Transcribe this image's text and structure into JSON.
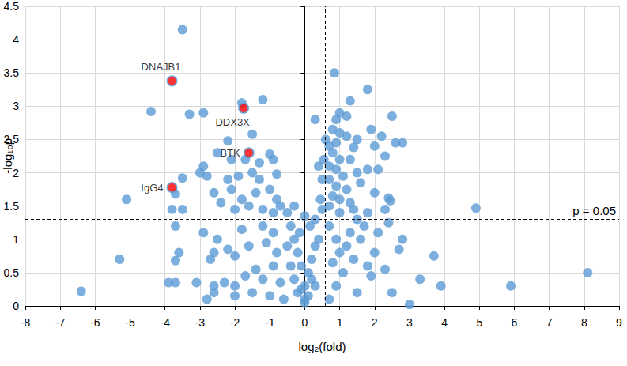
{
  "chart_data": {
    "type": "scatter",
    "x_label": "log₂(fold)",
    "y_label": "-log₁₀p",
    "xlim": [
      -8,
      9
    ],
    "xticks": [
      -8,
      -7,
      -6,
      -5,
      -4,
      -3,
      -2,
      -1,
      0,
      1,
      2,
      3,
      4,
      5,
      6,
      7,
      8,
      9
    ],
    "ylim": [
      0,
      4.5
    ],
    "yticks": [
      0,
      0.5,
      1,
      1.5,
      2,
      2.5,
      3,
      3.5,
      4,
      4.5
    ],
    "grid": true,
    "color": "#5b9bd5",
    "marker": "circle",
    "x": [
      -3.5,
      -4.4,
      -3.3,
      -2.9,
      -1.8,
      -1.2,
      -1.5,
      -2.2,
      -2.5,
      -2.1,
      -1.7,
      -1.3,
      -1.0,
      -0.9,
      -2.9,
      -3.0,
      -2.8,
      -3.5,
      -2.2,
      -1.9,
      -1.5,
      -1.3,
      -0.8,
      -3.7,
      -2.6,
      -2.1,
      -1.8,
      -1.4,
      -1.0,
      -0.8,
      -5.1,
      -3.8,
      -3.5,
      -2.4,
      -2.0,
      -1.6,
      -1.2,
      -0.9,
      -0.7,
      -3.7,
      -2.9,
      -2.5,
      -1.8,
      -1.2,
      -0.9,
      -3.6,
      -3.7,
      -5.3,
      -2.6,
      -2.2,
      -2.7,
      -2.0,
      -1.6,
      -1.1,
      -0.8,
      -6.4,
      -3.9,
      -3.7,
      -3.1,
      -2.6,
      -2.3,
      -2.0,
      -1.7,
      -2.6,
      -1.4,
      -1.2,
      -0.9,
      -0.7,
      -2.8,
      -2.0,
      -1.5,
      -1.0,
      -0.6,
      -0.5,
      -0.4,
      -0.3,
      -0.2,
      -0.1,
      0,
      0.1,
      0.2,
      -0.3,
      -0.2,
      0,
      0.1,
      0.3,
      -0.4,
      -0.5,
      0.4,
      0.3,
      0.2,
      0,
      -0.1,
      0.15,
      -0.15,
      0,
      -0.3,
      0.3,
      0.5,
      0.45,
      0.5,
      0.4,
      0.3,
      0.6,
      0.55,
      0.85,
      1.8,
      1.3,
      1.0,
      0.9,
      1.2,
      2.5,
      0.8,
      1.0,
      1.2,
      1.5,
      1.9,
      2.2,
      2.6,
      2.8,
      0.7,
      0.9,
      1.4,
      2.0,
      2.3,
      0.8,
      1.0,
      1.3,
      0.7,
      0.9,
      1.1,
      1.5,
      1.8,
      2.1,
      0.7,
      0.9,
      1.2,
      1.6,
      2.0,
      0.8,
      1.0,
      1.3,
      2.4,
      2.45,
      0.7,
      1.0,
      1.4,
      1.8,
      2.3,
      4.9,
      1.5,
      1.7,
      2.4,
      0.7,
      0.9,
      1.2,
      1.6,
      2.1,
      2.7,
      2.0,
      1.4,
      0.8,
      3.7,
      1.1,
      1.9,
      2.3,
      3.3,
      3.9,
      5.9,
      8.1,
      3.0,
      2.5,
      1.5,
      0.9,
      0.7,
      1.0,
      1.3,
      2.8,
      1.8
    ],
    "values": [
      4.15,
      2.92,
      2.88,
      2.9,
      3.05,
      3.1,
      2.58,
      2.48,
      2.3,
      2.2,
      2.2,
      2.15,
      2.28,
      2.2,
      2.1,
      2.0,
      1.95,
      1.92,
      1.9,
      1.95,
      2.0,
      1.9,
      1.98,
      1.68,
      1.7,
      1.75,
      1.6,
      1.7,
      1.75,
      1.6,
      1.6,
      1.45,
      1.45,
      1.55,
      1.45,
      1.5,
      1.45,
      1.4,
      1.5,
      1.2,
      1.1,
      1.0,
      1.15,
      1.2,
      1.1,
      0.8,
      0.68,
      0.7,
      0.8,
      0.85,
      0.7,
      0.75,
      0.9,
      0.95,
      0.8,
      0.22,
      0.35,
      0.35,
      0.35,
      0.3,
      0.35,
      0.3,
      0.45,
      0.2,
      0.55,
      0.4,
      0.6,
      0.35,
      0.1,
      0.15,
      0.2,
      0.15,
      0.1,
      1.4,
      1.2,
      1.0,
      0.8,
      0.6,
      0.3,
      0.5,
      0.7,
      0.4,
      0.2,
      0.05,
      0.15,
      0.3,
      0.6,
      0.9,
      1.0,
      0.9,
      0.4,
      0.1,
      0.25,
      1.2,
      1.1,
      1.35,
      1.5,
      1.3,
      1.45,
      1.6,
      1.9,
      2.1,
      2.8,
      2.5,
      2.2,
      3.5,
      3.25,
      3.08,
      2.9,
      2.8,
      2.85,
      2.85,
      2.65,
      2.6,
      2.55,
      2.5,
      2.65,
      2.55,
      2.45,
      2.45,
      2.4,
      2.45,
      2.38,
      2.4,
      2.25,
      2.3,
      2.2,
      2.2,
      2.1,
      2.05,
      1.95,
      2.0,
      2.05,
      2.05,
      1.9,
      1.8,
      1.75,
      1.85,
      1.7,
      1.65,
      1.6,
      1.55,
      1.62,
      1.58,
      1.5,
      1.4,
      1.45,
      1.4,
      1.45,
      1.47,
      1.3,
      1.2,
      1.25,
      1.2,
      1.0,
      0.9,
      1.0,
      1.1,
      0.85,
      0.8,
      0.7,
      0.65,
      0.75,
      0.5,
      0.45,
      0.55,
      0.4,
      0.3,
      0.3,
      0.5,
      0.02,
      0.2,
      0.2,
      0.3,
      0.1,
      0.8,
      1.1,
      1.0,
      0.6
    ],
    "highlights": {
      "color": "#ff0000",
      "points": [
        {
          "label": "DNAJB1",
          "x": -3.8,
          "y": 3.38
        },
        {
          "label": "DDX3X",
          "x": -1.75,
          "y": 2.97
        },
        {
          "label": "BTK",
          "x": -1.6,
          "y": 2.3
        },
        {
          "label": "IgG4",
          "x": -3.8,
          "y": 1.78
        }
      ]
    },
    "reference_lines": [
      {
        "axis": "x",
        "value": -0.585
      },
      {
        "axis": "x",
        "value": 0.585
      },
      {
        "axis": "y",
        "value": 1.301,
        "label": "p = 0.05"
      }
    ]
  }
}
